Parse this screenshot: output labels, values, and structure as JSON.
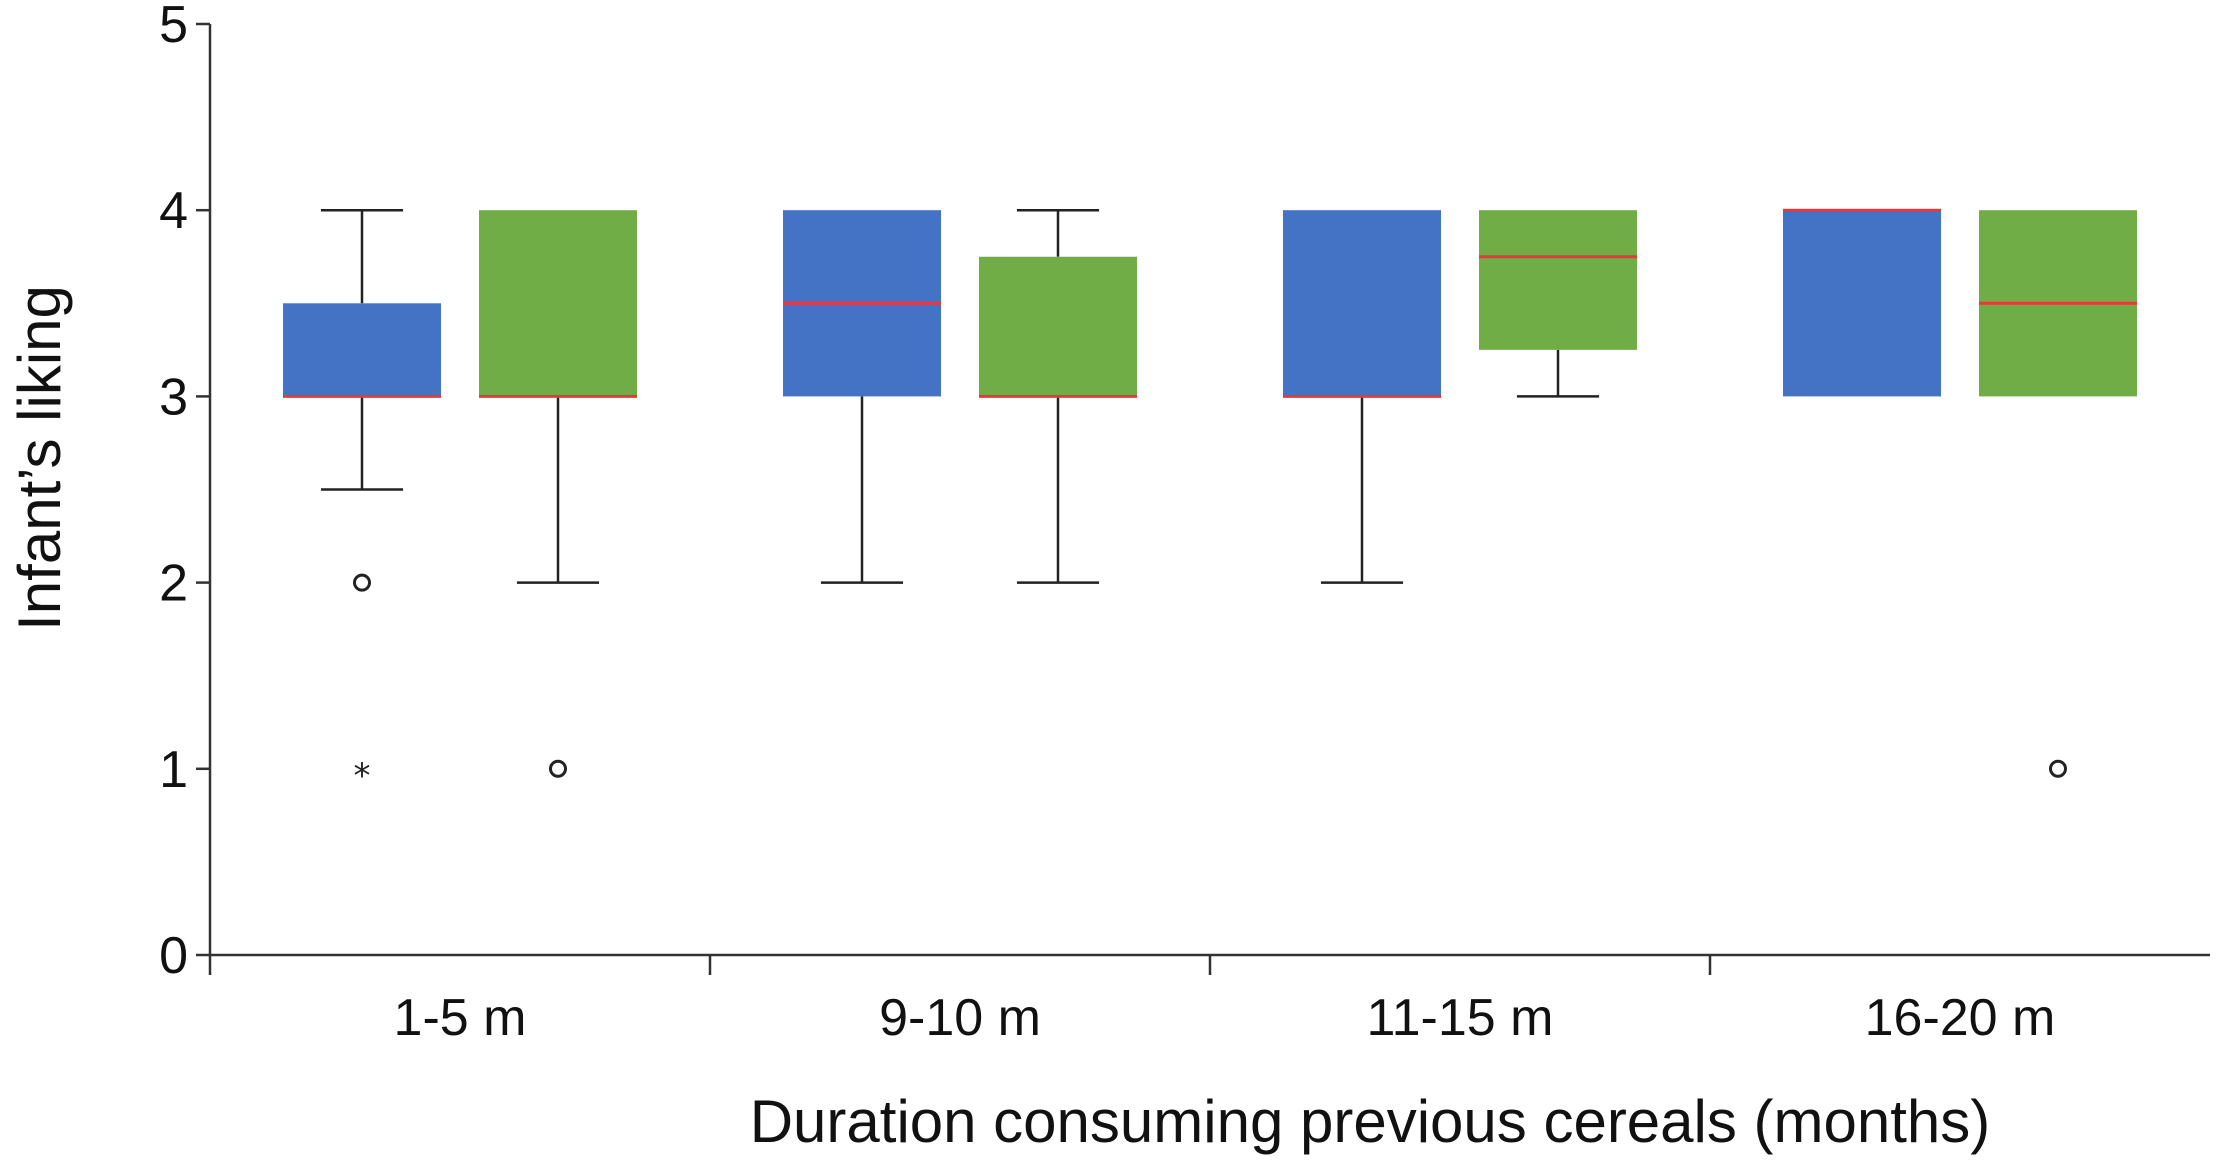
{
  "chart_data": {
    "type": "boxplot",
    "title": "",
    "xlabel": "Duration consuming previous cereals (months)",
    "ylabel": "Infant’s liking",
    "ylim": [
      0,
      5
    ],
    "yticks": [
      0,
      1,
      2,
      3,
      4,
      5
    ],
    "yticklabels": [
      "0",
      "1",
      "2",
      "3",
      "4",
      "5"
    ],
    "categories": [
      "1-5 m",
      "9-10 m",
      "11-15 m",
      "16-20 m"
    ],
    "colors": {
      "blue": "#4472c4",
      "green": "#70ad47",
      "median": "#e8383b"
    },
    "series": [
      {
        "name": "blue",
        "color": "#4472c4",
        "boxes": [
          {
            "min": 2.5,
            "q1": 3,
            "median": 3,
            "q3": 3.5,
            "max": 4,
            "outliers": [
              {
                "value": 2,
                "marker": "circle"
              },
              {
                "value": 1,
                "marker": "star"
              }
            ]
          },
          {
            "min": 2,
            "q1": 3,
            "median": 3.5,
            "q3": 4,
            "max": 4,
            "outliers": []
          },
          {
            "min": 2,
            "q1": 3,
            "median": 3,
            "q3": 4,
            "max": 4,
            "outliers": []
          },
          {
            "min": 3,
            "q1": 3,
            "median": 4,
            "q3": 4,
            "max": 4,
            "outliers": []
          }
        ]
      },
      {
        "name": "green",
        "color": "#70ad47",
        "boxes": [
          {
            "min": 2,
            "q1": 3,
            "median": 3,
            "q3": 4,
            "max": 4,
            "outliers": [
              {
                "value": 1,
                "marker": "circle"
              }
            ]
          },
          {
            "min": 2,
            "q1": 3,
            "median": 3,
            "q3": 3.75,
            "max": 4,
            "outliers": []
          },
          {
            "min": 3,
            "q1": 3.25,
            "median": 3.75,
            "q3": 4,
            "max": 4,
            "outliers": []
          },
          {
            "min": 3,
            "q1": 3,
            "median": 3.5,
            "q3": 4,
            "max": 4,
            "outliers": [
              {
                "value": 1,
                "marker": "circle"
              }
            ]
          }
        ]
      }
    ]
  }
}
